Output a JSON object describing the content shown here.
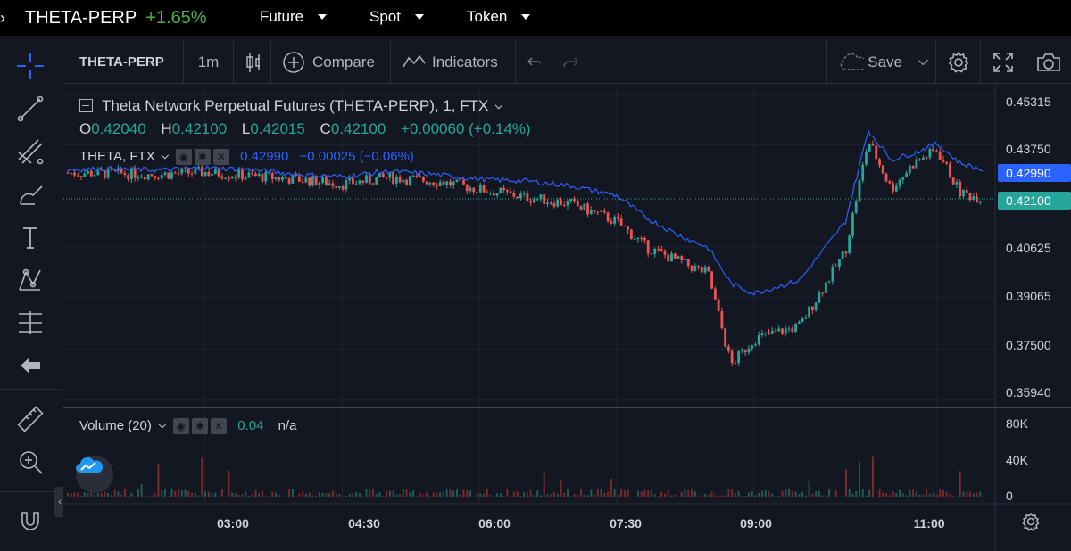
{
  "nav": {
    "symbol": "THETA-PERP",
    "change": "+1.65%",
    "menus": [
      {
        "label": "Future"
      },
      {
        "label": "Spot"
      },
      {
        "label": "Token"
      }
    ]
  },
  "toolbar": {
    "symbol": "THETA-PERP",
    "interval": "1m",
    "compare_label": "Compare",
    "indicators_label": "Indicators",
    "save_label": "Save"
  },
  "legend": {
    "title": "Theta Network Perpetual Futures (THETA-PERP), 1, FTX",
    "ohlc": {
      "o": "0.42040",
      "h": "0.42100",
      "l": "0.42015",
      "c": "0.42100",
      "chg": "+0.00060 (+0.14%)"
    },
    "compare": {
      "label": "THETA, FTX",
      "value": "0.42990",
      "chg": "−0.00025 (−0.06%)"
    },
    "volume": {
      "label": "Volume (20)",
      "value": "0.04",
      "ma": "n/a"
    }
  },
  "price_axis": [
    "0.45315",
    "0.43750",
    "0.40625",
    "0.39065",
    "0.37500",
    "0.35940"
  ],
  "price_tags": {
    "compare": "0.42990",
    "last": "0.42100"
  },
  "volume_axis": [
    "80K",
    "40K",
    "0"
  ],
  "time_axis": [
    "03:00",
    "04:30",
    "06:00",
    "07:30",
    "09:00",
    "11:00"
  ],
  "colors": {
    "up": "#26a69a",
    "down": "#ef5350",
    "compare": "#2962ff",
    "background": "#131722",
    "grid": "#1f2330"
  },
  "chart_data": {
    "type": "line",
    "series": [
      {
        "name": "THETA, FTX",
        "x": [
          "01:30",
          "02:00",
          "02:30",
          "03:00",
          "03:30",
          "04:00",
          "04:30",
          "05:00",
          "05:30",
          "06:00",
          "06:30",
          "07:00",
          "07:30",
          "07:50",
          "08:10",
          "08:30",
          "08:45",
          "09:00",
          "09:30",
          "10:00",
          "10:15",
          "10:30",
          "10:45",
          "11:00",
          "11:15",
          "11:30"
        ],
        "y": [
          0.43,
          0.4302,
          0.4298,
          0.4305,
          0.43,
          0.4285,
          0.4278,
          0.4295,
          0.4285,
          0.427,
          0.4265,
          0.425,
          0.422,
          0.415,
          0.41,
          0.406,
          0.395,
          0.392,
          0.396,
          0.414,
          0.442,
          0.433,
          0.435,
          0.438,
          0.432,
          0.4299
        ]
      },
      {
        "name": "THETA-PERP",
        "x": [
          "01:30",
          "02:00",
          "02:30",
          "03:00",
          "03:30",
          "04:00",
          "04:30",
          "05:00",
          "05:30",
          "06:00",
          "06:30",
          "07:00",
          "07:30",
          "07:50",
          "08:10",
          "08:30",
          "08:45",
          "09:00",
          "09:30",
          "10:00",
          "10:15",
          "10:30",
          "10:45",
          "11:00",
          "11:15",
          "11:30"
        ],
        "y": [
          0.429,
          0.4288,
          0.4285,
          0.4292,
          0.428,
          0.427,
          0.4255,
          0.4275,
          0.4265,
          0.424,
          0.4215,
          0.4195,
          0.414,
          0.406,
          0.402,
          0.398,
          0.37,
          0.378,
          0.382,
          0.405,
          0.439,
          0.424,
          0.432,
          0.436,
          0.423,
          0.421
        ]
      }
    ],
    "ylim": [
      0.357,
      0.456
    ]
  }
}
